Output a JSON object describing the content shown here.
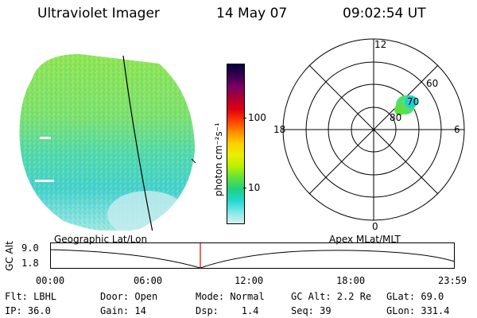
{
  "header": {
    "title": "Ultraviolet Imager",
    "date": "14 May 07",
    "time": "09:02:54 UT"
  },
  "colorbar": {
    "unit_label": "photon cm⁻²s⁻¹",
    "ticks": [
      "100",
      "10"
    ],
    "colors": [
      "#000040",
      "#3a0050",
      "#7a0060",
      "#b00030",
      "#e00010",
      "#ff4000",
      "#ff9000",
      "#ffd000",
      "#e8f000",
      "#b8f000",
      "#60e040",
      "#20d080",
      "#20d8d0",
      "#80e8e8",
      "#d8f0f0"
    ]
  },
  "polar_plot": {
    "mlt_labels": [
      "12",
      "18",
      "6",
      "0"
    ],
    "lat_labels": [
      "60",
      "70",
      "80"
    ]
  },
  "timeline": {
    "left_caption": "Geographic Lat/Lon",
    "right_caption": "Apex MLat/MLT",
    "y_title": "GC Alt",
    "y_ticks": [
      "9.0",
      "1.8"
    ],
    "x_ticks": [
      "00:00",
      "06:00",
      "12:00",
      "18:00",
      "23:59"
    ]
  },
  "status": {
    "row1": {
      "filter": "Flt: LBHL",
      "door": "Door: Open",
      "mode": "Mode: Normal",
      "gc_alt": "GC Alt: 2.2 Re",
      "glat": "GLat:  69.0"
    },
    "row2": {
      "ip": "IP: 36.0",
      "gain": "Gain: 14",
      "dsp": "Dsp:    1.4",
      "seq": "Seq: 39",
      "glon": "GLon: 331.4"
    }
  }
}
